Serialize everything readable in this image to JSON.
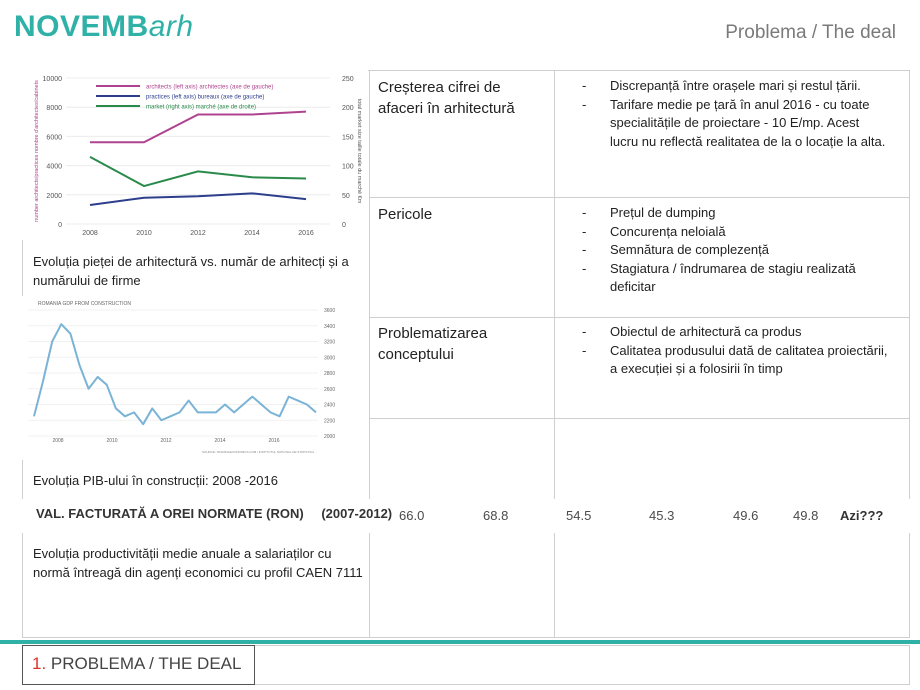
{
  "brand": {
    "logo_main": "NOVEMB",
    "logo_accent": "arh",
    "color": "#2fb1a7"
  },
  "header": {
    "title": "Problema / The deal"
  },
  "rows": [
    {
      "label": "Creșterea cifrei de afaceri în arhitectură",
      "bullets": [
        "Discrepanță între orașele mari și restul țării.",
        "Tarifare medie pe țară în anul 2016  - cu toate specialitățile de proiectare - 10 E/mp. Acest lucru nu reflectă realitatea de la o locație la alta."
      ]
    },
    {
      "label": "Pericole",
      "bullets": [
        "Prețul de dumping",
        "Concurența neloială",
        "Semnătura de complezență",
        "Stagiatura / îndrumarea de stagiu realizată deficitar"
      ]
    },
    {
      "label": "Problematizarea conceptului",
      "bullets": [
        "Obiectul de arhitectură ca produs",
        "Calitatea produsului dată de calitatea proiectării, a execuției și a folosirii în timp"
      ]
    }
  ],
  "captions": {
    "chart1": "Evoluția pieței de arhitectură vs. număr de arhitecți și a numărului de firme",
    "chart2": "Evoluția PIB-ului în construcții: 2008 -2016",
    "chart3": "Evoluția productivității medie anuale a salariaților cu normă întreagă din agenți economici cu profil CAEN 7111"
  },
  "strip": {
    "title": "VAL. FACTURATĂ A OREI NORMATE (RON)",
    "period": "(2007-2012)",
    "values": [
      "66.0",
      "68.8",
      "54.5",
      "45.3",
      "49.6",
      "49.8",
      "Azi???"
    ]
  },
  "footer": {
    "number": "1.",
    "label": "PROBLEMA / THE DEAL"
  },
  "chart_data": [
    {
      "type": "line",
      "x": [
        2008,
        2010,
        2012,
        2014,
        2016
      ],
      "ylim": [
        0,
        10000
      ],
      "y2lim": [
        0,
        250
      ],
      "yticks": [
        "0",
        "2000",
        "4000",
        "6000",
        "8000",
        "10000"
      ],
      "y2ticks": [
        "0",
        "50",
        "100",
        "150",
        "200",
        "250"
      ],
      "ylabel": "number architects/practices  nombre d'architectes/cabinets",
      "y2label": "total market size  taille totale du marché €m",
      "series": [
        {
          "name": "architects (left axis)",
          "name_fr": "architectes (axe de gauche)",
          "color": "#b0438f",
          "values": [
            5600,
            5600,
            7500,
            7500,
            7700
          ]
        },
        {
          "name": "practices (left axis)",
          "name_fr": "bureaux (axe de gauche)",
          "color": "#2c3e8c",
          "values": [
            1300,
            1800,
            1900,
            2100,
            1700
          ]
        },
        {
          "name": "market (right axis)",
          "name_fr": "marché (axe de droite)",
          "color": "#2a8a4a",
          "axis": "right",
          "values": [
            115,
            65,
            90,
            80,
            78
          ]
        }
      ]
    },
    {
      "type": "line",
      "title": "ROMANIA GDP FROM CONSTRUCTION",
      "xticks": [
        "2008",
        "2010",
        "2012",
        "2014",
        "2016"
      ],
      "ylim": [
        2000,
        3600
      ],
      "yticks": [
        "3600",
        "3400",
        "3200",
        "3000",
        "2800",
        "2600",
        "2400",
        "2200",
        "2000"
      ],
      "source": "SOURCE: TRADINGECONOMICS.COM | INSTITUTUL NATIONAL DE STATISTICA",
      "series": [
        {
          "name": "GDP from construction",
          "color": "#7ab3d6",
          "values": [
            2250,
            2700,
            3200,
            3420,
            3300,
            2900,
            2600,
            2750,
            2650,
            2350,
            2250,
            2300,
            2150,
            2350,
            2200,
            2250,
            2300,
            2450,
            2300,
            2300,
            2300,
            2400,
            2300,
            2400,
            2500,
            2400,
            2300,
            2250,
            2500,
            2450,
            2400,
            2300
          ]
        }
      ]
    }
  ]
}
